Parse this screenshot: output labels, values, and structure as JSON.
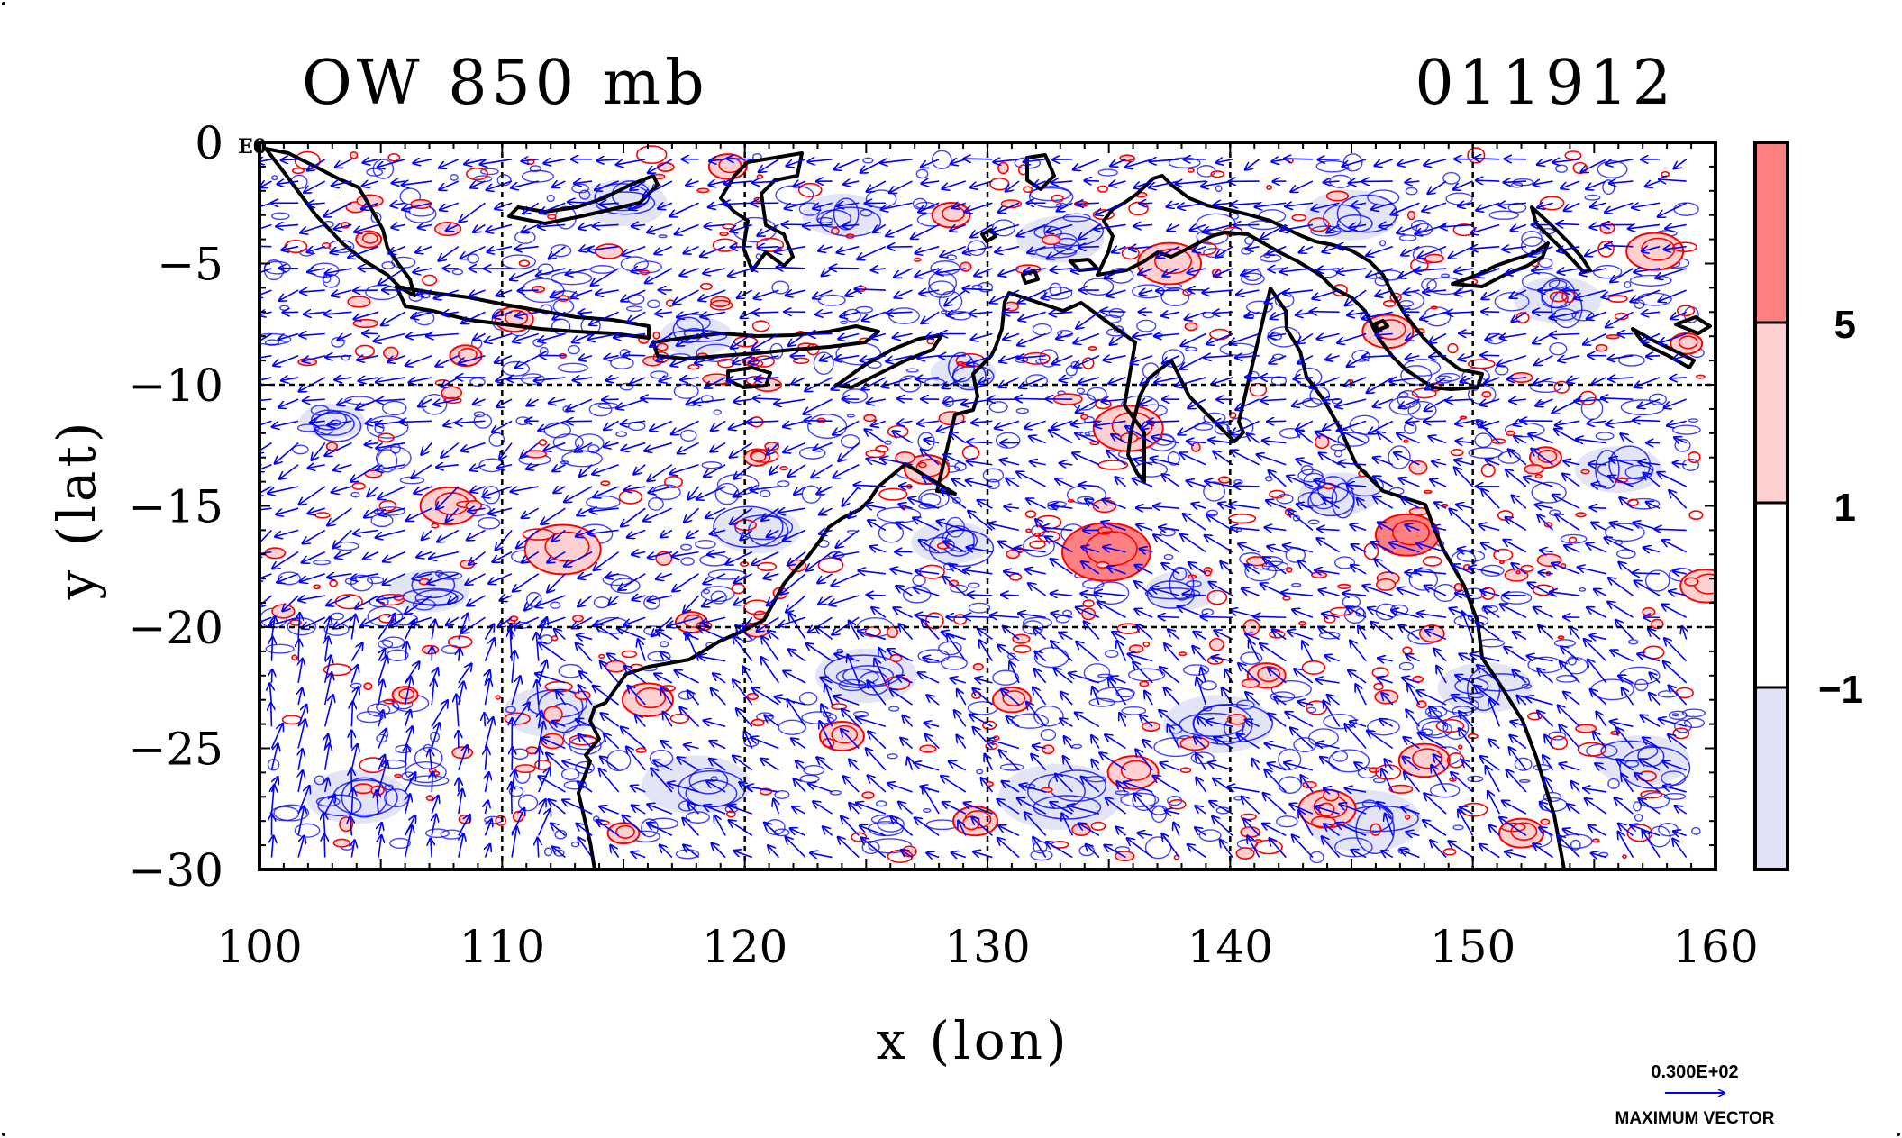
{
  "title_left": "OW 850 mb",
  "title_right": "011912",
  "corner_label": "E0",
  "colors": {
    "strong_positive": "#ff8080",
    "weak_positive": "#ffd0d0",
    "neutral": "#ffffff",
    "negative": "#e0e2f6",
    "positive_contour": "#ff0000",
    "negative_contour": "#0000ff",
    "vector": "#0000ff",
    "coast": "#000000"
  },
  "colorbar": {
    "levels": [
      "5",
      "1",
      "−1"
    ],
    "level_values": [
      5,
      1,
      -1
    ]
  },
  "vector_key": {
    "value_label": "0.300E+02",
    "caption": "MAXIMUM VECTOR"
  },
  "chart_data": {
    "type": "heatmap",
    "xlabel": "x (lon)",
    "ylabel": "y (lat)",
    "xlim": [
      100,
      160
    ],
    "ylim": [
      -30,
      0
    ],
    "xticks": [
      100,
      110,
      120,
      130,
      140,
      150,
      160
    ],
    "yticks": [
      0,
      -5,
      -10,
      -15,
      -20,
      -25,
      -30
    ],
    "xtick_labels": [
      "100",
      "110",
      "120",
      "130",
      "140",
      "150",
      "160"
    ],
    "ytick_labels": [
      "0",
      "−5",
      "−10",
      "−15",
      "−20",
      "−25",
      "−30"
    ],
    "gridlines_lon": [
      110,
      120,
      130,
      140,
      150
    ],
    "gridlines_lat": [
      -10,
      -20
    ],
    "positive_blobs": [
      {
        "lon": 134.9,
        "lat": -16.9,
        "r": 1.4,
        "level": "strong"
      },
      {
        "lon": 147.3,
        "lat": -16.2,
        "r": 1.0,
        "level": "strong"
      },
      {
        "lon": 112.5,
        "lat": -16.8,
        "r": 1.2,
        "level": "weak"
      },
      {
        "lon": 107.8,
        "lat": -15.0,
        "r": 0.9,
        "level": "weak"
      },
      {
        "lon": 135.8,
        "lat": -11.8,
        "r": 1.1,
        "level": "weak"
      },
      {
        "lon": 137.5,
        "lat": -5.0,
        "r": 1.0,
        "level": "weak"
      },
      {
        "lon": 146.5,
        "lat": -7.8,
        "r": 0.8,
        "level": "weak"
      },
      {
        "lon": 157.5,
        "lat": -4.5,
        "r": 0.9,
        "level": "weak"
      },
      {
        "lon": 159.6,
        "lat": -18.3,
        "r": 0.8,
        "level": "weak"
      },
      {
        "lon": 158.8,
        "lat": -8.3,
        "r": 0.5,
        "level": "weak"
      },
      {
        "lon": 153.0,
        "lat": -13.0,
        "r": 0.5,
        "level": "weak"
      },
      {
        "lon": 127.5,
        "lat": -13.5,
        "r": 0.7,
        "level": "weak"
      },
      {
        "lon": 128.5,
        "lat": -3.0,
        "r": 0.6,
        "level": "weak"
      },
      {
        "lon": 119.3,
        "lat": -1.0,
        "r": 0.6,
        "level": "weak"
      },
      {
        "lon": 117.8,
        "lat": -19.8,
        "r": 0.5,
        "level": "weak"
      },
      {
        "lon": 110.5,
        "lat": -7.3,
        "r": 0.6,
        "level": "weak"
      },
      {
        "lon": 108.5,
        "lat": -8.8,
        "r": 0.5,
        "level": "weak"
      },
      {
        "lon": 104.5,
        "lat": -4.0,
        "r": 0.4,
        "level": "weak"
      },
      {
        "lon": 116.0,
        "lat": -23.0,
        "r": 0.8,
        "level": "weak"
      },
      {
        "lon": 124.0,
        "lat": -24.5,
        "r": 0.7,
        "level": "weak"
      },
      {
        "lon": 136.0,
        "lat": -26.0,
        "r": 0.8,
        "level": "weak"
      },
      {
        "lon": 144.0,
        "lat": -27.5,
        "r": 0.9,
        "level": "weak"
      },
      {
        "lon": 148.0,
        "lat": -25.5,
        "r": 0.8,
        "level": "weak"
      },
      {
        "lon": 152.0,
        "lat": -28.5,
        "r": 0.7,
        "level": "weak"
      },
      {
        "lon": 141.5,
        "lat": -22.0,
        "r": 0.6,
        "level": "weak"
      },
      {
        "lon": 131.0,
        "lat": -23.0,
        "r": 0.6,
        "level": "weak"
      },
      {
        "lon": 129.5,
        "lat": -28.0,
        "r": 0.7,
        "level": "weak"
      },
      {
        "lon": 120.5,
        "lat": -13.0,
        "r": 0.4,
        "level": "weak"
      },
      {
        "lon": 115.0,
        "lat": -28.5,
        "r": 0.5,
        "level": "weak"
      },
      {
        "lon": 106.0,
        "lat": -22.8,
        "r": 0.4,
        "level": "weak"
      }
    ],
    "negative_blobs": [
      {
        "lon": 104.0,
        "lat": -27.0,
        "r": 1.4
      },
      {
        "lon": 112.0,
        "lat": -23.5,
        "r": 1.3
      },
      {
        "lon": 118.0,
        "lat": -26.5,
        "r": 1.5
      },
      {
        "lon": 125.0,
        "lat": -22.0,
        "r": 1.4
      },
      {
        "lon": 133.0,
        "lat": -27.0,
        "r": 1.7
      },
      {
        "lon": 139.5,
        "lat": -24.0,
        "r": 1.5
      },
      {
        "lon": 145.5,
        "lat": -28.0,
        "r": 1.6
      },
      {
        "lon": 150.5,
        "lat": -22.5,
        "r": 1.3
      },
      {
        "lon": 157.0,
        "lat": -25.5,
        "r": 1.3
      },
      {
        "lon": 156.0,
        "lat": -13.5,
        "r": 1.2
      },
      {
        "lon": 144.5,
        "lat": -14.5,
        "r": 1.1
      },
      {
        "lon": 138.0,
        "lat": -18.5,
        "r": 1.0
      },
      {
        "lon": 128.5,
        "lat": -16.5,
        "r": 1.1
      },
      {
        "lon": 120.5,
        "lat": -16.0,
        "r": 1.2
      },
      {
        "lon": 107.0,
        "lat": -18.5,
        "r": 1.1
      },
      {
        "lon": 115.0,
        "lat": -2.5,
        "r": 1.2
      },
      {
        "lon": 124.0,
        "lat": -3.0,
        "r": 1.1
      },
      {
        "lon": 133.0,
        "lat": -4.0,
        "r": 1.2
      },
      {
        "lon": 145.0,
        "lat": -3.0,
        "r": 1.3
      },
      {
        "lon": 153.5,
        "lat": -6.5,
        "r": 1.2
      },
      {
        "lon": 118.0,
        "lat": -8.0,
        "r": 1.0
      },
      {
        "lon": 129.0,
        "lat": -9.5,
        "r": 0.9
      },
      {
        "lon": 103.0,
        "lat": -11.5,
        "r": 0.9
      }
    ]
  }
}
